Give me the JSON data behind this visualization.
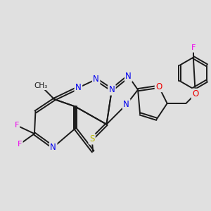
{
  "background_color": "#e0e0e0",
  "bond_color": "#1a1a1a",
  "bond_width": 1.4,
  "dbo": 0.055,
  "atom_colors": {
    "N": "#0000ee",
    "S": "#bbbb00",
    "O": "#ee0000",
    "F": "#ee00ee",
    "C": "#1a1a1a"
  },
  "afs": 8.5
}
